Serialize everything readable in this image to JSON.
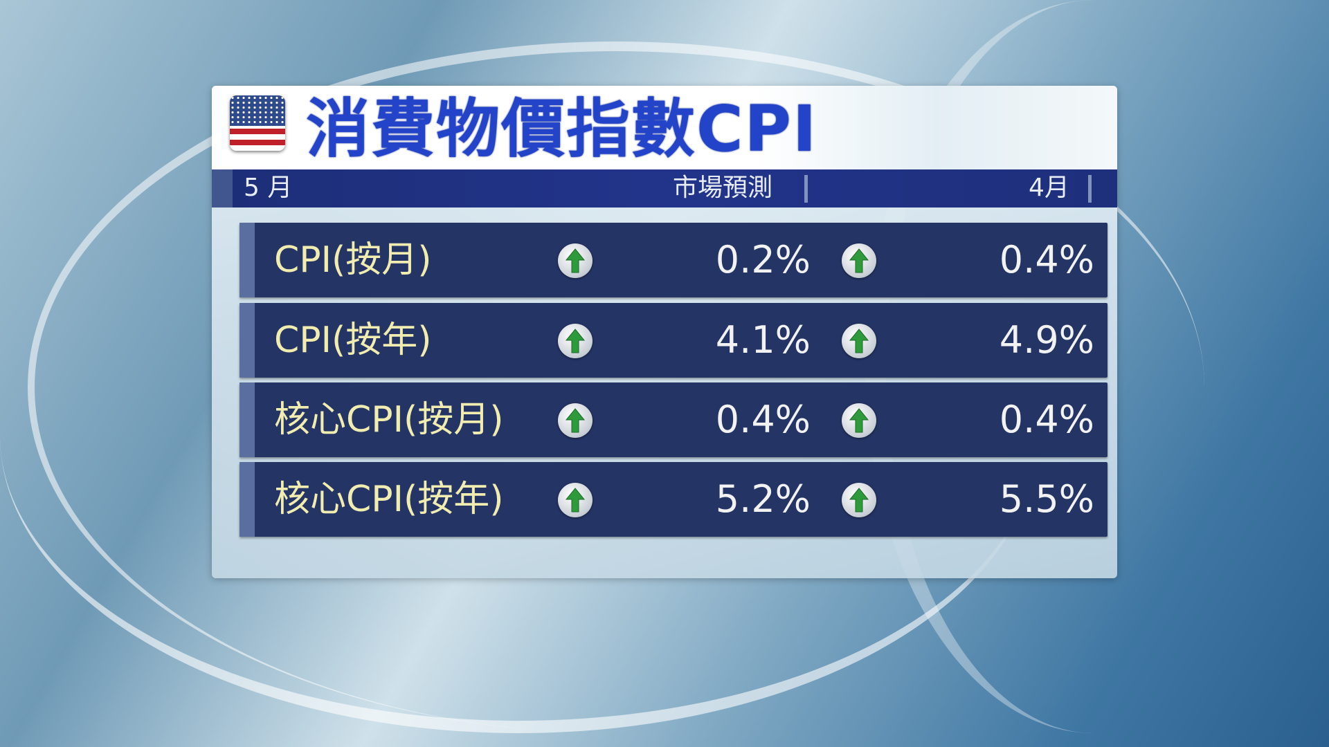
{
  "title": "消費物價指數CPI",
  "flag_icon": "us-flag-icon",
  "header": {
    "col_month": "5 月",
    "col_forecast": "市場預測",
    "col_prev": "4月"
  },
  "colors": {
    "title": "#2344c8",
    "row_bg": "#243465",
    "label": "#f1ecb0",
    "arrow": "#2e9a3c"
  },
  "rows": [
    {
      "label": "CPI(按月)",
      "actual_trend": "up",
      "actual": "0.2%",
      "forecast_trend": "up",
      "forecast": "0.4%"
    },
    {
      "label": "CPI(按年)",
      "actual_trend": "up",
      "actual": "4.1%",
      "forecast_trend": "up",
      "forecast": "4.9%"
    },
    {
      "label": "核心CPI(按月)",
      "actual_trend": "up",
      "actual": "0.4%",
      "forecast_trend": "up",
      "forecast": "0.4%"
    },
    {
      "label": "核心CPI(按年)",
      "actual_trend": "up",
      "actual": "5.2%",
      "forecast_trend": "up",
      "forecast": "5.5%"
    }
  ]
}
